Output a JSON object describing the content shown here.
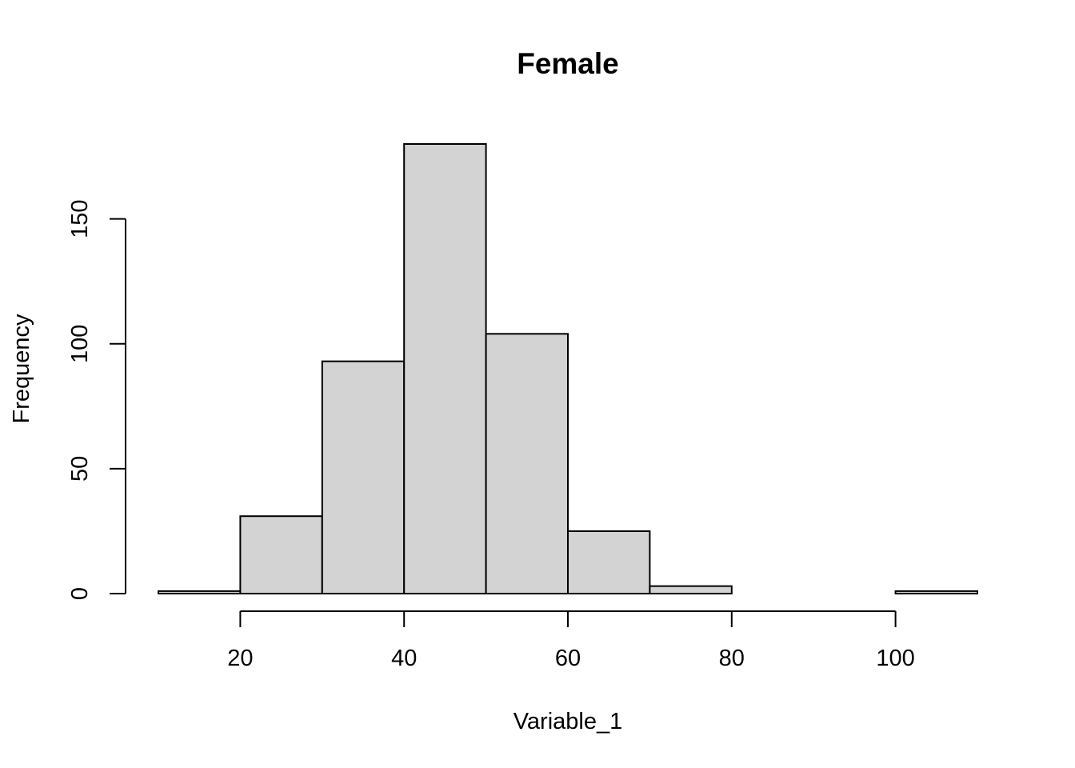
{
  "chart_data": {
    "type": "bar",
    "title": "Female",
    "xlabel": "Variable_1",
    "ylabel": "Frequency",
    "bins": [
      {
        "from": 10,
        "to": 20,
        "count": 1
      },
      {
        "from": 20,
        "to": 30,
        "count": 31
      },
      {
        "from": 30,
        "to": 40,
        "count": 93
      },
      {
        "from": 40,
        "to": 50,
        "count": 180
      },
      {
        "from": 50,
        "to": 60,
        "count": 104
      },
      {
        "from": 60,
        "to": 70,
        "count": 25
      },
      {
        "from": 70,
        "to": 80,
        "count": 3
      },
      {
        "from": 80,
        "to": 90,
        "count": 0
      },
      {
        "from": 90,
        "to": 100,
        "count": 0
      },
      {
        "from": 100,
        "to": 110,
        "count": 1
      }
    ],
    "xticks": [
      20,
      40,
      60,
      80,
      100
    ],
    "yticks": [
      0,
      50,
      100,
      150
    ],
    "xlim": [
      10,
      110
    ],
    "ylim": [
      0,
      180
    ],
    "grid": false,
    "bar_color": "#d3d3d3",
    "edge_color": "#000000"
  }
}
